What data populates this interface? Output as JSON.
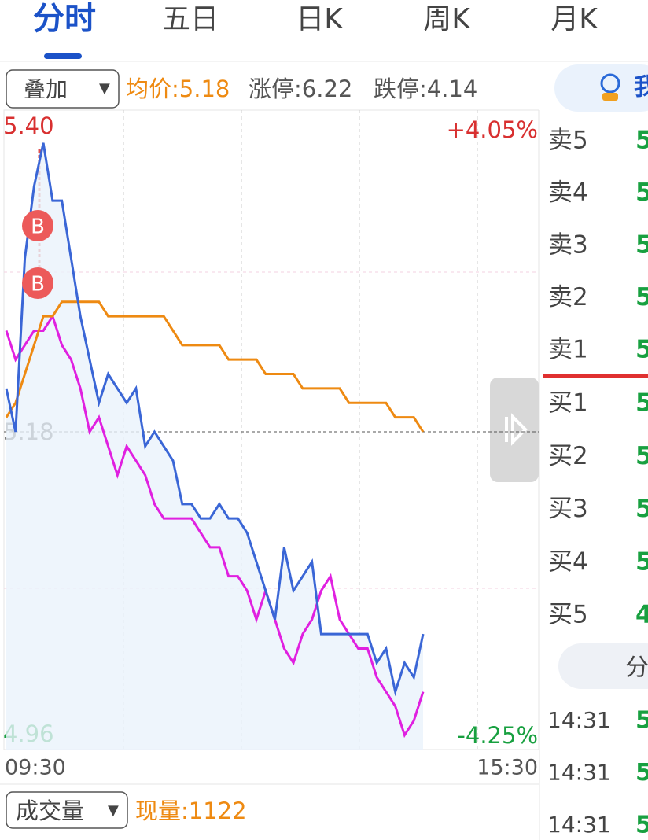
{
  "tabs": [
    "分时",
    "五日",
    "日K",
    "周K",
    "月K"
  ],
  "toolbar": {
    "overlay": "叠加",
    "avg": "均价:5.18",
    "limit_up": "涨停:6.22",
    "limit_down": "跌停:4.14",
    "button": "我"
  },
  "chart_data": {
    "type": "line",
    "ylim": [
      4.96,
      5.4
    ],
    "yticks": [
      4.96,
      5.18,
      {
        "value": 5.4,
        "label": "5.40"
      }
    ],
    "right_labels": [
      "+4.05%",
      "-4.25%"
    ],
    "xtick_labels": [
      "09:30",
      "15:30"
    ],
    "series": [
      {
        "color": "#3a66d6",
        "values": [
          5.21,
          5.18,
          5.3,
          5.35,
          5.38,
          5.34,
          5.34,
          5.3,
          5.26,
          5.23,
          5.2,
          5.22,
          5.21,
          5.2,
          5.21,
          5.17,
          5.18,
          5.17,
          5.16,
          5.13,
          5.13,
          5.12,
          5.12,
          5.13,
          5.12,
          5.12,
          5.11,
          5.09,
          5.07,
          5.05,
          5.1,
          5.07,
          5.08,
          5.09,
          5.04,
          5.04,
          5.04,
          5.04,
          5.04,
          5.04,
          5.02,
          5.03,
          5.0,
          5.02,
          5.01,
          5.04
        ]
      },
      {
        "color": "#ee8a12",
        "values": [
          5.19,
          5.2,
          5.22,
          5.24,
          5.26,
          5.26,
          5.27,
          5.27,
          5.27,
          5.27,
          5.27,
          5.26,
          5.26,
          5.26,
          5.26,
          5.26,
          5.26,
          5.26,
          5.25,
          5.24,
          5.24,
          5.24,
          5.24,
          5.24,
          5.23,
          5.23,
          5.23,
          5.23,
          5.22,
          5.22,
          5.22,
          5.22,
          5.21,
          5.21,
          5.21,
          5.21,
          5.21,
          5.2,
          5.2,
          5.2,
          5.2,
          5.2,
          5.19,
          5.19,
          5.19,
          5.18
        ]
      },
      {
        "color": "#e020e0",
        "values": [
          5.25,
          5.23,
          5.24,
          5.25,
          5.25,
          5.26,
          5.24,
          5.23,
          5.21,
          5.18,
          5.19,
          5.17,
          5.15,
          5.17,
          5.16,
          5.15,
          5.13,
          5.12,
          5.12,
          5.12,
          5.12,
          5.11,
          5.1,
          5.1,
          5.08,
          5.08,
          5.07,
          5.05,
          5.07,
          5.05,
          5.03,
          5.02,
          5.04,
          5.05,
          5.07,
          5.08,
          5.05,
          5.04,
          5.03,
          5.03,
          5.01,
          5.0,
          4.99,
          4.97,
          4.98,
          5.0
        ]
      }
    ]
  },
  "order_book": {
    "sell": [
      "卖5",
      "卖4",
      "卖3",
      "卖2",
      "卖1"
    ],
    "sell_prices": [
      "5",
      "5",
      "5",
      "5",
      "5"
    ],
    "buy": [
      "买1",
      "买2",
      "买3",
      "买4",
      "买5"
    ],
    "buy_prices": [
      "5",
      "5",
      "5",
      "5",
      "4"
    ]
  },
  "trades_tab": "分",
  "trades": [
    {
      "time": "14:31",
      "price": "5"
    },
    {
      "time": "14:31",
      "price": "5"
    },
    {
      "time": "14:31",
      "price": "5"
    }
  ],
  "volume": {
    "selector": "成交量",
    "current": "现量:1122"
  }
}
